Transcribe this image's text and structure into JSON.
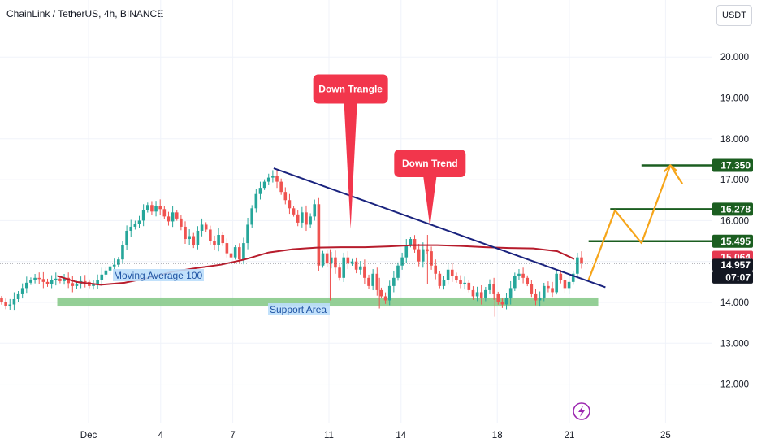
{
  "header": {
    "title": "ChainLink / TetherUS, 4h, BINANCE",
    "currency_button": "USDT"
  },
  "chart_data": {
    "type": "candlestick",
    "symbol": "LINK/USDT",
    "timeframe": "4h",
    "exchange": "BINANCE",
    "y_ticks": [
      12.0,
      13.0,
      14.0,
      15.0,
      16.0,
      17.0,
      18.0,
      19.0,
      20.0
    ],
    "y_tick_labels": [
      "12.000",
      "13.000",
      "14.000",
      "15.000",
      "16.000",
      "17.000",
      "18.000",
      "19.000",
      "20.000"
    ],
    "ylim": [
      11.0,
      21.7
    ],
    "x_tick_labels": [
      {
        "label": "Dec",
        "day": 1
      },
      {
        "label": "4",
        "day": 4
      },
      {
        "label": "7",
        "day": 7
      },
      {
        "label": "11",
        "day": 11
      },
      {
        "label": "14",
        "day": 14
      },
      {
        "label": "18",
        "day": 18
      },
      {
        "label": "21",
        "day": 21
      },
      {
        "label": "25",
        "day": 25
      }
    ],
    "candle_closes": [
      14.0,
      13.92,
      13.95,
      14.08,
      14.2,
      14.35,
      14.48,
      14.55,
      14.6,
      14.57,
      14.5,
      14.45,
      14.55,
      14.58,
      14.52,
      14.6,
      14.47,
      14.4,
      14.45,
      14.52,
      14.5,
      14.4,
      14.44,
      14.55,
      14.68,
      14.78,
      14.88,
      14.92,
      15.05,
      15.4,
      15.75,
      15.85,
      15.92,
      16.0,
      16.25,
      16.38,
      16.22,
      16.35,
      16.28,
      16.1,
      15.98,
      16.2,
      16.05,
      15.85,
      15.55,
      15.62,
      15.4,
      15.75,
      15.9,
      15.78,
      15.5,
      15.4,
      15.65,
      15.45,
      15.2,
      15.1,
      15.35,
      15.05,
      15.45,
      15.9,
      16.3,
      16.65,
      16.8,
      16.95,
      17.05,
      17.1,
      16.95,
      16.7,
      16.5,
      16.3,
      16.15,
      15.95,
      16.2,
      15.9,
      16.1,
      16.4,
      14.9,
      15.2,
      14.95,
      15.1,
      14.85,
      14.6,
      15.1,
      14.95,
      15.0,
      14.8,
      14.88,
      14.6,
      14.4,
      14.7,
      14.3,
      14.15,
      14.05,
      14.4,
      14.6,
      14.9,
      15.1,
      15.4,
      15.55,
      15.3,
      15.0,
      15.3,
      15.25,
      14.9,
      14.7,
      14.4,
      14.55,
      14.8,
      14.65,
      14.55,
      14.45,
      14.48,
      14.3,
      14.15,
      14.25,
      14.1,
      14.3,
      14.45,
      14.2,
      14.0,
      13.95,
      14.1,
      14.35,
      14.65,
      14.7,
      14.6,
      14.45,
      14.2,
      14.05,
      14.1,
      14.4,
      14.35,
      14.25,
      14.7,
      14.55,
      14.35,
      14.5,
      14.7,
      15.1,
      14.96
    ],
    "moving_average_100": [
      {
        "day": -0.3,
        "value": 14.65
      },
      {
        "day": 0.5,
        "value": 14.5
      },
      {
        "day": 1.5,
        "value": 14.43
      },
      {
        "day": 2.5,
        "value": 14.48
      },
      {
        "day": 3.5,
        "value": 14.6
      },
      {
        "day": 4.5,
        "value": 14.75
      },
      {
        "day": 5.5,
        "value": 14.84
      },
      {
        "day": 6.5,
        "value": 14.92
      },
      {
        "day": 7.5,
        "value": 15.05
      },
      {
        "day": 8.5,
        "value": 15.22
      },
      {
        "day": 9.5,
        "value": 15.3
      },
      {
        "day": 10.5,
        "value": 15.34
      },
      {
        "day": 11.5,
        "value": 15.35
      },
      {
        "day": 12.5,
        "value": 15.35
      },
      {
        "day": 13.5,
        "value": 15.37
      },
      {
        "day": 14.5,
        "value": 15.4
      },
      {
        "day": 15.5,
        "value": 15.4
      },
      {
        "day": 16.5,
        "value": 15.38
      },
      {
        "day": 17.5,
        "value": 15.35
      },
      {
        "day": 18.5,
        "value": 15.33
      },
      {
        "day": 19.5,
        "value": 15.32
      },
      {
        "day": 20.5,
        "value": 15.25
      },
      {
        "day": 21.2,
        "value": 15.06
      }
    ],
    "trendline": {
      "from": {
        "day": 8.7,
        "value": 17.28
      },
      "to": {
        "day": 22.5,
        "value": 14.37
      }
    },
    "support_zone": {
      "from_day": -0.3,
      "to_day": 22.2,
      "low": 13.9,
      "high": 14.1
    },
    "projection_path": [
      {
        "day": 21.8,
        "value": 14.55
      },
      {
        "day": 22.9,
        "value": 16.25
      },
      {
        "day": 24.0,
        "value": 15.45
      },
      {
        "day": 25.2,
        "value": 17.35
      },
      {
        "day": 25.7,
        "value": 16.9
      }
    ],
    "horizontal_levels": [
      {
        "value": 17.35,
        "from_day": 24.0
      },
      {
        "value": 16.278,
        "from_day": 22.7
      },
      {
        "value": 15.495,
        "from_day": 21.8
      }
    ],
    "current_price": 14.957,
    "price_labels": [
      {
        "text": "17.350",
        "value": 17.35,
        "color": "#1b5e20"
      },
      {
        "text": "16.278",
        "value": 16.278,
        "color": "#1b5e20"
      },
      {
        "text": "15.495",
        "value": 15.495,
        "color": "#1b5e20"
      },
      {
        "text": "15.064",
        "value": 15.064,
        "color": "#e53950"
      },
      {
        "text": "14.957",
        "value": 14.957,
        "color": "#131722"
      }
    ],
    "countdown": "07:07",
    "annotations": [
      {
        "text": "Down Trangle",
        "anchor_day": 11.9,
        "anchor_value": 15.8
      },
      {
        "text": "Down Trend",
        "anchor_day": 15.2,
        "anchor_value": 15.85
      }
    ],
    "labels": {
      "moving_average": "Moving Average 100",
      "support": "Support Area"
    },
    "colors": {
      "up": "#26a69a",
      "down": "#ef5350",
      "ma": "#b71c2c",
      "trendline": "#1a237e",
      "support": "#81c784",
      "projection": "#f6a51a",
      "levels": "#1b5e20",
      "callout": "#f2364c"
    }
  }
}
